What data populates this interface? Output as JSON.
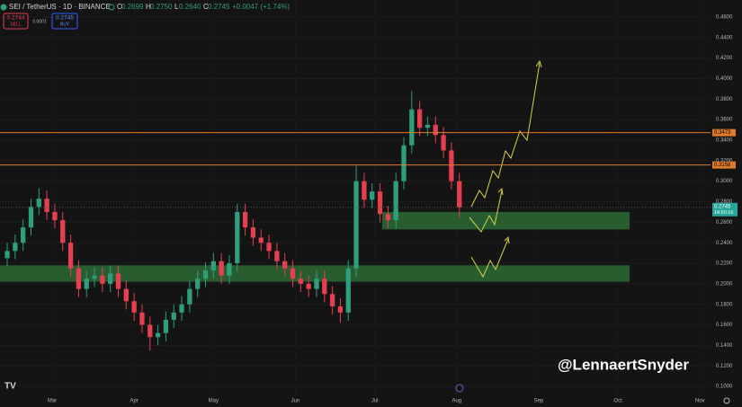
{
  "header": {
    "symbol": "SEI / TetherUS · 1D · BINANCE",
    "ohlc_letters": [
      "O",
      "H",
      "L",
      "C"
    ],
    "ohlc": [
      "0.2699",
      "0.2750",
      "0.2640",
      "0.2745"
    ],
    "change": "+0.0047 (+1.74%)",
    "sell_price": "0.2744",
    "sell": "SELL",
    "spread": "0.0001",
    "buy_price": "0.2745",
    "buy": "BUY"
  },
  "watermark": "@LennaertSnyder",
  "chart_data": {
    "type": "candlestick",
    "x": [
      44,
      47,
      50,
      53,
      56,
      59,
      62,
      65,
      68,
      71,
      74,
      77,
      80,
      83,
      86,
      89,
      92,
      95,
      98,
      101,
      104,
      107,
      110,
      113,
      116,
      119,
      122,
      125,
      128,
      131,
      134,
      137,
      140,
      143,
      146,
      149,
      152,
      155,
      158,
      161,
      164,
      167,
      170,
      173,
      176,
      179,
      182,
      185,
      188,
      191,
      194,
      197,
      200,
      203,
      206,
      209,
      212,
      215
    ],
    "open": [
      0.225,
      0.232,
      0.24,
      0.255,
      0.275,
      0.283,
      0.27,
      0.262,
      0.24,
      0.215,
      0.195,
      0.205,
      0.208,
      0.2,
      0.21,
      0.195,
      0.183,
      0.172,
      0.16,
      0.148,
      0.152,
      0.165,
      0.172,
      0.18,
      0.195,
      0.205,
      0.213,
      0.222,
      0.208,
      0.22,
      0.27,
      0.255,
      0.245,
      0.24,
      0.232,
      0.222,
      0.215,
      0.205,
      0.2,
      0.195,
      0.205,
      0.19,
      0.178,
      0.172,
      0.215,
      0.3,
      0.282,
      0.29,
      0.268,
      0.262,
      0.3,
      0.335,
      0.37,
      0.352,
      0.355,
      0.345,
      0.33,
      0.3
    ],
    "high": [
      0.24,
      0.248,
      0.263,
      0.283,
      0.293,
      0.291,
      0.278,
      0.27,
      0.248,
      0.223,
      0.213,
      0.216,
      0.216,
      0.218,
      0.218,
      0.203,
      0.191,
      0.18,
      0.168,
      0.16,
      0.173,
      0.18,
      0.188,
      0.203,
      0.213,
      0.221,
      0.23,
      0.23,
      0.228,
      0.278,
      0.278,
      0.263,
      0.253,
      0.248,
      0.24,
      0.23,
      0.223,
      0.213,
      0.208,
      0.213,
      0.213,
      0.198,
      0.186,
      0.223,
      0.315,
      0.308,
      0.298,
      0.298,
      0.276,
      0.308,
      0.343,
      0.388,
      0.378,
      0.363,
      0.363,
      0.353,
      0.338,
      0.308
    ],
    "low": [
      0.217,
      0.224,
      0.232,
      0.247,
      0.267,
      0.262,
      0.254,
      0.232,
      0.207,
      0.187,
      0.187,
      0.197,
      0.192,
      0.192,
      0.187,
      0.175,
      0.164,
      0.152,
      0.135,
      0.14,
      0.144,
      0.157,
      0.164,
      0.172,
      0.187,
      0.197,
      0.205,
      0.2,
      0.2,
      0.212,
      0.247,
      0.237,
      0.232,
      0.224,
      0.214,
      0.207,
      0.197,
      0.192,
      0.187,
      0.187,
      0.182,
      0.17,
      0.162,
      0.164,
      0.207,
      0.274,
      0.274,
      0.26,
      0.254,
      0.254,
      0.292,
      0.327,
      0.344,
      0.344,
      0.337,
      0.322,
      0.292,
      0.264
    ],
    "close": [
      0.232,
      0.24,
      0.255,
      0.275,
      0.283,
      0.27,
      0.262,
      0.24,
      0.215,
      0.195,
      0.205,
      0.208,
      0.2,
      0.21,
      0.195,
      0.183,
      0.172,
      0.16,
      0.148,
      0.152,
      0.165,
      0.172,
      0.18,
      0.195,
      0.205,
      0.213,
      0.222,
      0.208,
      0.22,
      0.27,
      0.255,
      0.245,
      0.24,
      0.232,
      0.222,
      0.215,
      0.205,
      0.2,
      0.195,
      0.205,
      0.19,
      0.178,
      0.172,
      0.215,
      0.3,
      0.282,
      0.29,
      0.268,
      0.262,
      0.3,
      0.335,
      0.37,
      0.352,
      0.355,
      0.345,
      0.33,
      0.3,
      0.2745
    ],
    "up_color": "#2f9e7d",
    "down_color": "#e5404f",
    "xlim": [
      41.27,
      310
    ],
    "xticks": [
      {
        "value": 61,
        "label": "Mar"
      },
      {
        "value": 92,
        "label": "Apr"
      },
      {
        "value": 122,
        "label": "May"
      },
      {
        "value": 153,
        "label": "Jun"
      },
      {
        "value": 183,
        "label": "Jul"
      },
      {
        "value": 214,
        "label": "Aug"
      },
      {
        "value": 245,
        "label": "Sep"
      },
      {
        "value": 275,
        "label": "Oct"
      },
      {
        "value": 306,
        "label": "Nov"
      }
    ],
    "ylim": [
      0.0913,
      0.4766
    ],
    "yticks": [
      {
        "value": 0.1,
        "label": "0.1000"
      },
      {
        "value": 0.12,
        "label": "0.1200"
      },
      {
        "value": 0.14,
        "label": "0.1400"
      },
      {
        "value": 0.16,
        "label": "0.1600"
      },
      {
        "value": 0.18,
        "label": "0.1800"
      },
      {
        "value": 0.2,
        "label": "0.2000"
      },
      {
        "value": 0.22,
        "label": "0.2200"
      },
      {
        "value": 0.24,
        "label": "0.2400"
      },
      {
        "value": 0.26,
        "label": "0.2600"
      },
      {
        "value": 0.28,
        "label": "0.2800"
      },
      {
        "value": 0.3,
        "label": "0.3000"
      },
      {
        "value": 0.32,
        "label": "0.3200"
      },
      {
        "value": 0.34,
        "label": "0.3400"
      },
      {
        "value": 0.36,
        "label": "0.3600"
      },
      {
        "value": 0.38,
        "label": "0.3800"
      },
      {
        "value": 0.4,
        "label": "0.4000"
      },
      {
        "value": 0.42,
        "label": "0.4200"
      },
      {
        "value": 0.44,
        "label": "0.4400"
      },
      {
        "value": 0.46,
        "label": "0.4600"
      }
    ],
    "levels": [
      {
        "value": 0.3473,
        "color": "#e07b2a"
      },
      {
        "value": 0.3158,
        "color": "#e07b2a"
      }
    ],
    "zones": [
      {
        "low": 0.253,
        "high": 0.27,
        "x_from": 185.8,
        "x_to": 279.4,
        "color": "#2c6a35"
      },
      {
        "low": 0.202,
        "high": 0.218,
        "x_from": 41.27,
        "x_to": 279.4,
        "color": "#2c6a35"
      }
    ],
    "last_price": {
      "value": 0.2745,
      "countdown": "14:50:16",
      "color": "#26a69a"
    }
  }
}
